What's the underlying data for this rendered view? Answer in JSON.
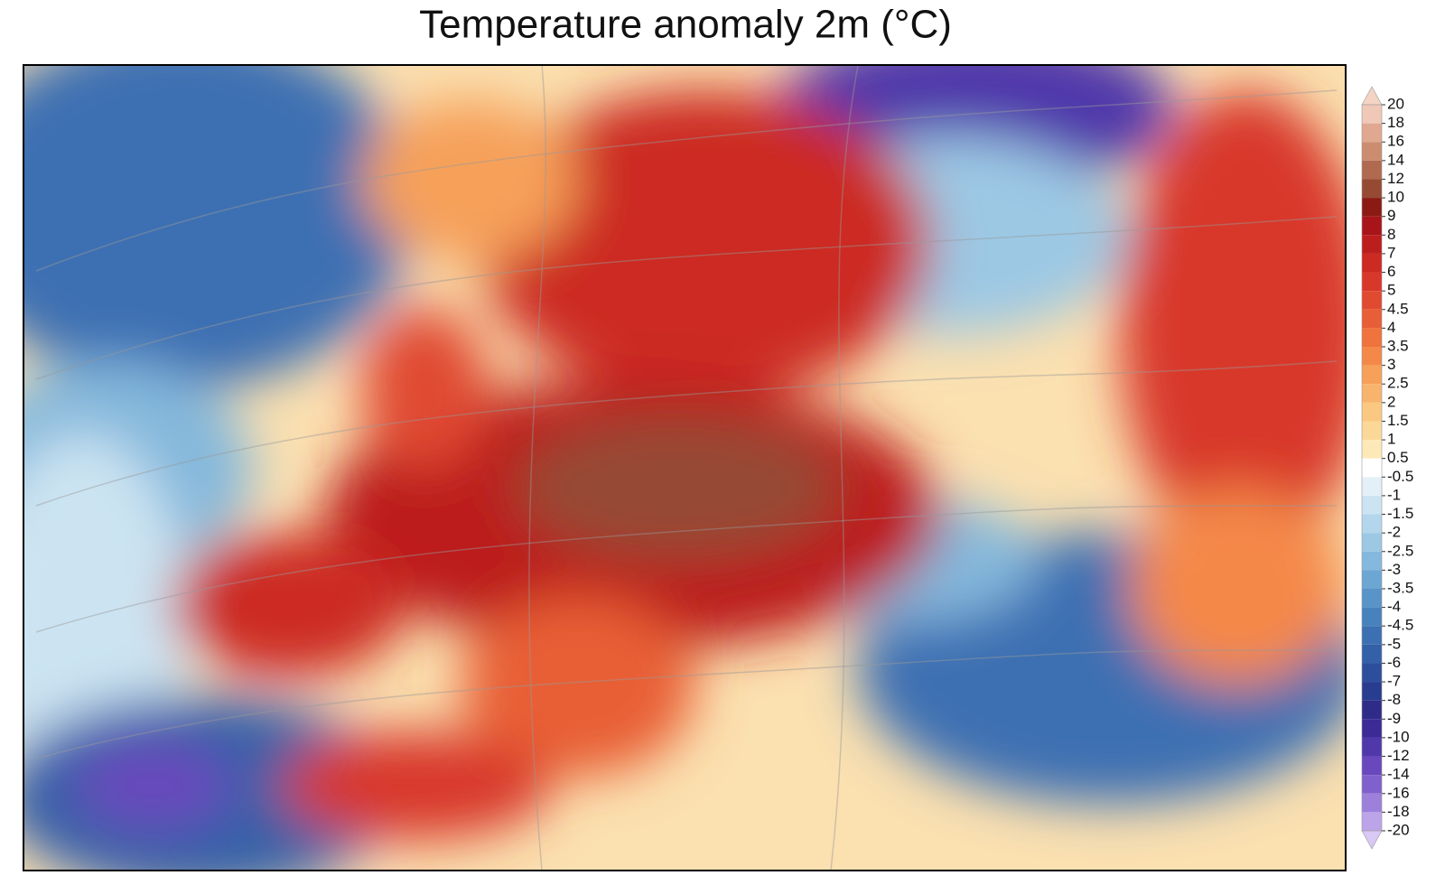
{
  "chart_data": {
    "type": "map",
    "title": "Temperature anomaly 2m (°C)",
    "colorbar": {
      "levels": [
        20,
        18,
        16,
        14,
        12,
        10,
        9,
        8,
        7,
        6,
        5,
        4.5,
        4,
        3.5,
        3,
        2.5,
        2,
        1.5,
        1,
        0.5,
        -0.5,
        -1,
        -1.5,
        -2,
        -2.5,
        -3,
        -3.5,
        -4,
        -4.5,
        -5,
        -6,
        -7,
        -8,
        -9,
        -10,
        -12,
        -14,
        -16,
        -18,
        -20
      ],
      "colors": [
        "#f0c8b8",
        "#e0a890",
        "#cc8c70",
        "#b06a50",
        "#964a34",
        "#8c1a14",
        "#a8141a",
        "#bc1e1e",
        "#cc2a22",
        "#d8382a",
        "#e04a30",
        "#e85e36",
        "#f0723c",
        "#f48848",
        "#f6a05a",
        "#f8b46c",
        "#fac880",
        "#fcd898",
        "#fde8b8",
        "#ffffff",
        "#e4f0f8",
        "#cce4f2",
        "#b4d6ec",
        "#9cc8e4",
        "#84b8dc",
        "#6ca6d2",
        "#5894c8",
        "#4882bc",
        "#3c70b2",
        "#3460a8",
        "#2c4e9c",
        "#283c90",
        "#2e2c88",
        "#3c2a96",
        "#5038aa",
        "#6848bc",
        "#8060cc",
        "#9c80da",
        "#bca4e8"
      ],
      "extend_colors": [
        "#f4d4c4",
        "#d8c8f4"
      ]
    }
  }
}
